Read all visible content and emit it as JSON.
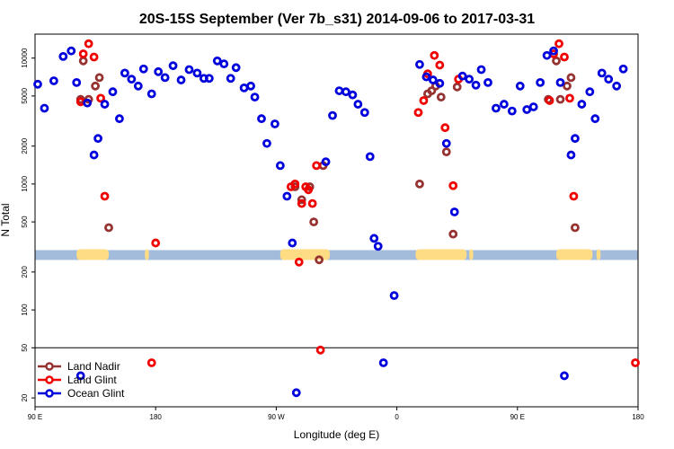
{
  "chart_data": {
    "type": "scatter",
    "title": "20S-15S September (Ver 7b_s31)   2014-09-06 to 2017-03-31",
    "xlabel": "Longitude (deg E)",
    "ylabel": "N Total",
    "y_scale": "log",
    "xlim": [
      90,
      540
    ],
    "ylim": [
      17,
      15500
    ],
    "x_ticks": [
      {
        "x": 90,
        "label": "90 E"
      },
      {
        "x": 180,
        "label": "180"
      },
      {
        "x": 270,
        "label": "90 W"
      },
      {
        "x": 360,
        "label": "0"
      },
      {
        "x": 450,
        "label": "90 E"
      },
      {
        "x": 540,
        "label": "180"
      }
    ],
    "y_ticks": [
      {
        "y": 20,
        "label": "20"
      },
      {
        "y": 50,
        "label": "50"
      },
      {
        "y": 100,
        "label": "100"
      },
      {
        "y": 200,
        "label": "200"
      },
      {
        "y": 500,
        "label": "500"
      },
      {
        "y": 1000,
        "label": "1000"
      },
      {
        "y": 2000,
        "label": "2000"
      },
      {
        "y": 5000,
        "label": "5000"
      },
      {
        "y": 10000,
        "label": "10000"
      }
    ],
    "reference_line_y": 50,
    "grid": false,
    "legend_position": "bottom-left",
    "band": {
      "y": 275,
      "ocean_color": "#a3bcdc",
      "land_color": "#fedc83",
      "land_ranges": [
        [
          121,
          145
        ],
        [
          172,
          175
        ],
        [
          273,
          310
        ],
        [
          374,
          412
        ],
        [
          414,
          417
        ],
        [
          479,
          506
        ],
        [
          509,
          512
        ]
      ]
    },
    "series": [
      {
        "name": "Land Nadir",
        "color": "#963232",
        "points": [
          [
            124,
            4700
          ],
          [
            126,
            9500
          ],
          [
            130,
            4700
          ],
          [
            135,
            6000
          ],
          [
            138,
            7000
          ],
          [
            145,
            450
          ],
          [
            284,
            950
          ],
          [
            289,
            750
          ],
          [
            295,
            950
          ],
          [
            298,
            500
          ],
          [
            302,
            250
          ],
          [
            305,
            1400
          ],
          [
            377,
            1000
          ],
          [
            383,
            5200
          ],
          [
            386,
            5500
          ],
          [
            389,
            6000
          ],
          [
            393,
            4900
          ],
          [
            397,
            1800
          ],
          [
            402,
            400
          ],
          [
            405,
            5900
          ],
          [
            473,
            4700
          ],
          [
            479,
            9500
          ],
          [
            482,
            4700
          ],
          [
            487,
            6000
          ],
          [
            490,
            7000
          ],
          [
            493,
            450
          ]
        ]
      },
      {
        "name": "Land Glint",
        "color": "#f00000",
        "points": [
          [
            124,
            4500
          ],
          [
            126,
            10800
          ],
          [
            130,
            13000
          ],
          [
            134,
            10200
          ],
          [
            139,
            4800
          ],
          [
            142,
            800
          ],
          [
            177,
            38
          ],
          [
            180,
            340
          ],
          [
            281,
            950
          ],
          [
            284,
            1000
          ],
          [
            287,
            240
          ],
          [
            289,
            700
          ],
          [
            292,
            950
          ],
          [
            294,
            900
          ],
          [
            297,
            700
          ],
          [
            300,
            1400
          ],
          [
            303,
            48
          ],
          [
            376,
            3700
          ],
          [
            380,
            4600
          ],
          [
            383,
            7500
          ],
          [
            388,
            10500
          ],
          [
            392,
            8800
          ],
          [
            396,
            2800
          ],
          [
            402,
            970
          ],
          [
            406,
            6800
          ],
          [
            474,
            4600
          ],
          [
            477,
            10800
          ],
          [
            481,
            13000
          ],
          [
            485,
            10200
          ],
          [
            489,
            4800
          ],
          [
            492,
            800
          ],
          [
            538,
            38
          ]
        ]
      },
      {
        "name": "Ocean Glint",
        "color": "#0000dc",
        "points": [
          [
            92,
            6200
          ],
          [
            97,
            4000
          ],
          [
            104,
            6600
          ],
          [
            111,
            10300
          ],
          [
            117,
            11400
          ],
          [
            121,
            6400
          ],
          [
            124,
            30
          ],
          [
            129,
            4400
          ],
          [
            134,
            1700
          ],
          [
            137,
            2300
          ],
          [
            142,
            4300
          ],
          [
            148,
            5400
          ],
          [
            153,
            3300
          ],
          [
            157,
            7600
          ],
          [
            162,
            6800
          ],
          [
            167,
            6000
          ],
          [
            171,
            8200
          ],
          [
            177,
            5200
          ],
          [
            182,
            7800
          ],
          [
            187,
            7000
          ],
          [
            193,
            8700
          ],
          [
            199,
            6700
          ],
          [
            205,
            8100
          ],
          [
            211,
            7600
          ],
          [
            216,
            6900
          ],
          [
            220,
            6900
          ],
          [
            226,
            9500
          ],
          [
            231,
            9000
          ],
          [
            236,
            6900
          ],
          [
            240,
            8400
          ],
          [
            246,
            5800
          ],
          [
            251,
            6000
          ],
          [
            254,
            4900
          ],
          [
            259,
            3300
          ],
          [
            263,
            2100
          ],
          [
            269,
            3000
          ],
          [
            273,
            1400
          ],
          [
            278,
            800
          ],
          [
            282,
            340
          ],
          [
            285,
            22
          ],
          [
            307,
            1500
          ],
          [
            312,
            3500
          ],
          [
            317,
            5500
          ],
          [
            322,
            5400
          ],
          [
            327,
            5100
          ],
          [
            331,
            4300
          ],
          [
            336,
            3700
          ],
          [
            340,
            1650
          ],
          [
            343,
            370
          ],
          [
            346,
            320
          ],
          [
            350,
            38
          ],
          [
            358,
            130
          ],
          [
            377,
            8900
          ],
          [
            382,
            7100
          ],
          [
            387,
            6700
          ],
          [
            392,
            6300
          ],
          [
            397,
            2100
          ],
          [
            403,
            600
          ],
          [
            409,
            7200
          ],
          [
            414,
            6800
          ],
          [
            419,
            6100
          ],
          [
            423,
            8100
          ],
          [
            428,
            6400
          ],
          [
            434,
            4000
          ],
          [
            440,
            4300
          ],
          [
            446,
            3800
          ],
          [
            452,
            6000
          ],
          [
            457,
            3900
          ],
          [
            462,
            4100
          ],
          [
            467,
            6400
          ],
          [
            472,
            10500
          ],
          [
            477,
            11400
          ],
          [
            482,
            6400
          ],
          [
            485,
            30
          ],
          [
            490,
            1700
          ],
          [
            493,
            2300
          ],
          [
            498,
            4300
          ],
          [
            504,
            5400
          ],
          [
            508,
            3300
          ],
          [
            513,
            7600
          ],
          [
            518,
            6800
          ],
          [
            524,
            6000
          ],
          [
            529,
            8200
          ]
        ]
      }
    ]
  }
}
